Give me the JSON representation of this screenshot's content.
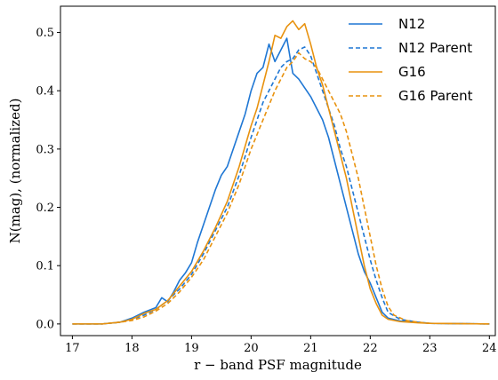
{
  "chart_data": {
    "type": "line",
    "title": "",
    "xlabel": "r − band PSF magnitude",
    "ylabel": "N(mag),  (normalized)",
    "xlim": [
      16.8,
      24.1
    ],
    "ylim": [
      -0.02,
      0.545
    ],
    "xticks": [
      17,
      18,
      19,
      20,
      21,
      22,
      23,
      24
    ],
    "yticks": [
      0.0,
      0.1,
      0.2,
      0.3,
      0.4,
      0.5
    ],
    "ytick_labels": [
      "0.0",
      "0.1",
      "0.2",
      "0.3",
      "0.4",
      "0.5"
    ],
    "grid": false,
    "legend_position": "top-right",
    "colors": {
      "N12": "#1f77d4",
      "G16": "#e8920f"
    },
    "series": [
      {
        "name": "N12",
        "color": "#1f77d4",
        "dash": "solid",
        "points": [
          [
            17.0,
            0.0
          ],
          [
            17.5,
            0.0
          ],
          [
            17.8,
            0.003
          ],
          [
            18.0,
            0.01
          ],
          [
            18.2,
            0.02
          ],
          [
            18.4,
            0.028
          ],
          [
            18.5,
            0.045
          ],
          [
            18.6,
            0.038
          ],
          [
            18.7,
            0.055
          ],
          [
            18.8,
            0.075
          ],
          [
            18.9,
            0.088
          ],
          [
            19.0,
            0.105
          ],
          [
            19.1,
            0.14
          ],
          [
            19.2,
            0.17
          ],
          [
            19.3,
            0.2
          ],
          [
            19.4,
            0.23
          ],
          [
            19.5,
            0.255
          ],
          [
            19.6,
            0.27
          ],
          [
            19.7,
            0.3
          ],
          [
            19.8,
            0.33
          ],
          [
            19.9,
            0.36
          ],
          [
            20.0,
            0.4
          ],
          [
            20.1,
            0.43
          ],
          [
            20.2,
            0.44
          ],
          [
            20.3,
            0.48
          ],
          [
            20.35,
            0.465
          ],
          [
            20.4,
            0.45
          ],
          [
            20.5,
            0.47
          ],
          [
            20.6,
            0.49
          ],
          [
            20.7,
            0.43
          ],
          [
            20.8,
            0.42
          ],
          [
            20.9,
            0.405
          ],
          [
            21.0,
            0.39
          ],
          [
            21.1,
            0.37
          ],
          [
            21.2,
            0.35
          ],
          [
            21.3,
            0.32
          ],
          [
            21.4,
            0.28
          ],
          [
            21.5,
            0.24
          ],
          [
            21.6,
            0.2
          ],
          [
            21.7,
            0.16
          ],
          [
            21.8,
            0.12
          ],
          [
            21.9,
            0.09
          ],
          [
            22.0,
            0.07
          ],
          [
            22.1,
            0.045
          ],
          [
            22.2,
            0.02
          ],
          [
            22.3,
            0.01
          ],
          [
            22.5,
            0.005
          ],
          [
            22.8,
            0.003
          ],
          [
            23.0,
            0.001
          ],
          [
            24.0,
            0.0
          ]
        ]
      },
      {
        "name": "N12 Parent",
        "color": "#1f77d4",
        "dash": "dashed",
        "points": [
          [
            17.0,
            0.0
          ],
          [
            17.5,
            0.0
          ],
          [
            17.8,
            0.003
          ],
          [
            18.0,
            0.008
          ],
          [
            18.2,
            0.015
          ],
          [
            18.4,
            0.025
          ],
          [
            18.6,
            0.04
          ],
          [
            18.8,
            0.06
          ],
          [
            19.0,
            0.085
          ],
          [
            19.2,
            0.12
          ],
          [
            19.4,
            0.16
          ],
          [
            19.6,
            0.2
          ],
          [
            19.8,
            0.255
          ],
          [
            20.0,
            0.32
          ],
          [
            20.2,
            0.38
          ],
          [
            20.4,
            0.42
          ],
          [
            20.5,
            0.44
          ],
          [
            20.6,
            0.45
          ],
          [
            20.7,
            0.455
          ],
          [
            20.8,
            0.47
          ],
          [
            20.9,
            0.475
          ],
          [
            21.0,
            0.46
          ],
          [
            21.1,
            0.43
          ],
          [
            21.2,
            0.4
          ],
          [
            21.3,
            0.37
          ],
          [
            21.4,
            0.34
          ],
          [
            21.5,
            0.3
          ],
          [
            21.6,
            0.27
          ],
          [
            21.7,
            0.23
          ],
          [
            21.8,
            0.19
          ],
          [
            21.9,
            0.15
          ],
          [
            22.0,
            0.11
          ],
          [
            22.1,
            0.075
          ],
          [
            22.2,
            0.045
          ],
          [
            22.3,
            0.02
          ],
          [
            22.5,
            0.008
          ],
          [
            22.8,
            0.003
          ],
          [
            23.0,
            0.001
          ],
          [
            24.0,
            0.0
          ]
        ]
      },
      {
        "name": "G16",
        "color": "#e8920f",
        "dash": "solid",
        "points": [
          [
            17.0,
            0.0
          ],
          [
            17.5,
            0.0
          ],
          [
            17.8,
            0.003
          ],
          [
            18.0,
            0.008
          ],
          [
            18.2,
            0.018
          ],
          [
            18.4,
            0.025
          ],
          [
            18.6,
            0.04
          ],
          [
            18.8,
            0.065
          ],
          [
            19.0,
            0.09
          ],
          [
            19.2,
            0.125
          ],
          [
            19.4,
            0.165
          ],
          [
            19.6,
            0.21
          ],
          [
            19.8,
            0.27
          ],
          [
            20.0,
            0.34
          ],
          [
            20.1,
            0.37
          ],
          [
            20.2,
            0.41
          ],
          [
            20.3,
            0.45
          ],
          [
            20.4,
            0.495
          ],
          [
            20.5,
            0.49
          ],
          [
            20.6,
            0.51
          ],
          [
            20.7,
            0.52
          ],
          [
            20.8,
            0.505
          ],
          [
            20.9,
            0.515
          ],
          [
            21.0,
            0.48
          ],
          [
            21.1,
            0.44
          ],
          [
            21.2,
            0.41
          ],
          [
            21.3,
            0.37
          ],
          [
            21.4,
            0.33
          ],
          [
            21.5,
            0.29
          ],
          [
            21.6,
            0.25
          ],
          [
            21.7,
            0.2
          ],
          [
            21.8,
            0.15
          ],
          [
            21.9,
            0.1
          ],
          [
            22.0,
            0.06
          ],
          [
            22.1,
            0.035
          ],
          [
            22.2,
            0.015
          ],
          [
            22.3,
            0.008
          ],
          [
            22.5,
            0.004
          ],
          [
            22.8,
            0.002
          ],
          [
            23.0,
            0.001
          ],
          [
            24.0,
            0.0
          ]
        ]
      },
      {
        "name": "G16 Parent",
        "color": "#e8920f",
        "dash": "dashed",
        "points": [
          [
            17.0,
            0.0
          ],
          [
            17.5,
            0.0
          ],
          [
            17.8,
            0.003
          ],
          [
            18.0,
            0.006
          ],
          [
            18.2,
            0.012
          ],
          [
            18.4,
            0.022
          ],
          [
            18.6,
            0.035
          ],
          [
            18.8,
            0.055
          ],
          [
            19.0,
            0.08
          ],
          [
            19.2,
            0.11
          ],
          [
            19.4,
            0.15
          ],
          [
            19.6,
            0.19
          ],
          [
            19.8,
            0.24
          ],
          [
            20.0,
            0.3
          ],
          [
            20.2,
            0.35
          ],
          [
            20.4,
            0.4
          ],
          [
            20.5,
            0.42
          ],
          [
            20.6,
            0.44
          ],
          [
            20.7,
            0.45
          ],
          [
            20.8,
            0.465
          ],
          [
            20.9,
            0.455
          ],
          [
            21.0,
            0.45
          ],
          [
            21.1,
            0.44
          ],
          [
            21.2,
            0.42
          ],
          [
            21.3,
            0.4
          ],
          [
            21.4,
            0.38
          ],
          [
            21.5,
            0.36
          ],
          [
            21.6,
            0.33
          ],
          [
            21.7,
            0.29
          ],
          [
            21.8,
            0.25
          ],
          [
            21.9,
            0.2
          ],
          [
            22.0,
            0.15
          ],
          [
            22.1,
            0.1
          ],
          [
            22.2,
            0.06
          ],
          [
            22.3,
            0.03
          ],
          [
            22.4,
            0.015
          ],
          [
            22.6,
            0.006
          ],
          [
            22.8,
            0.003
          ],
          [
            23.0,
            0.001
          ],
          [
            24.0,
            0.0
          ]
        ]
      }
    ]
  }
}
